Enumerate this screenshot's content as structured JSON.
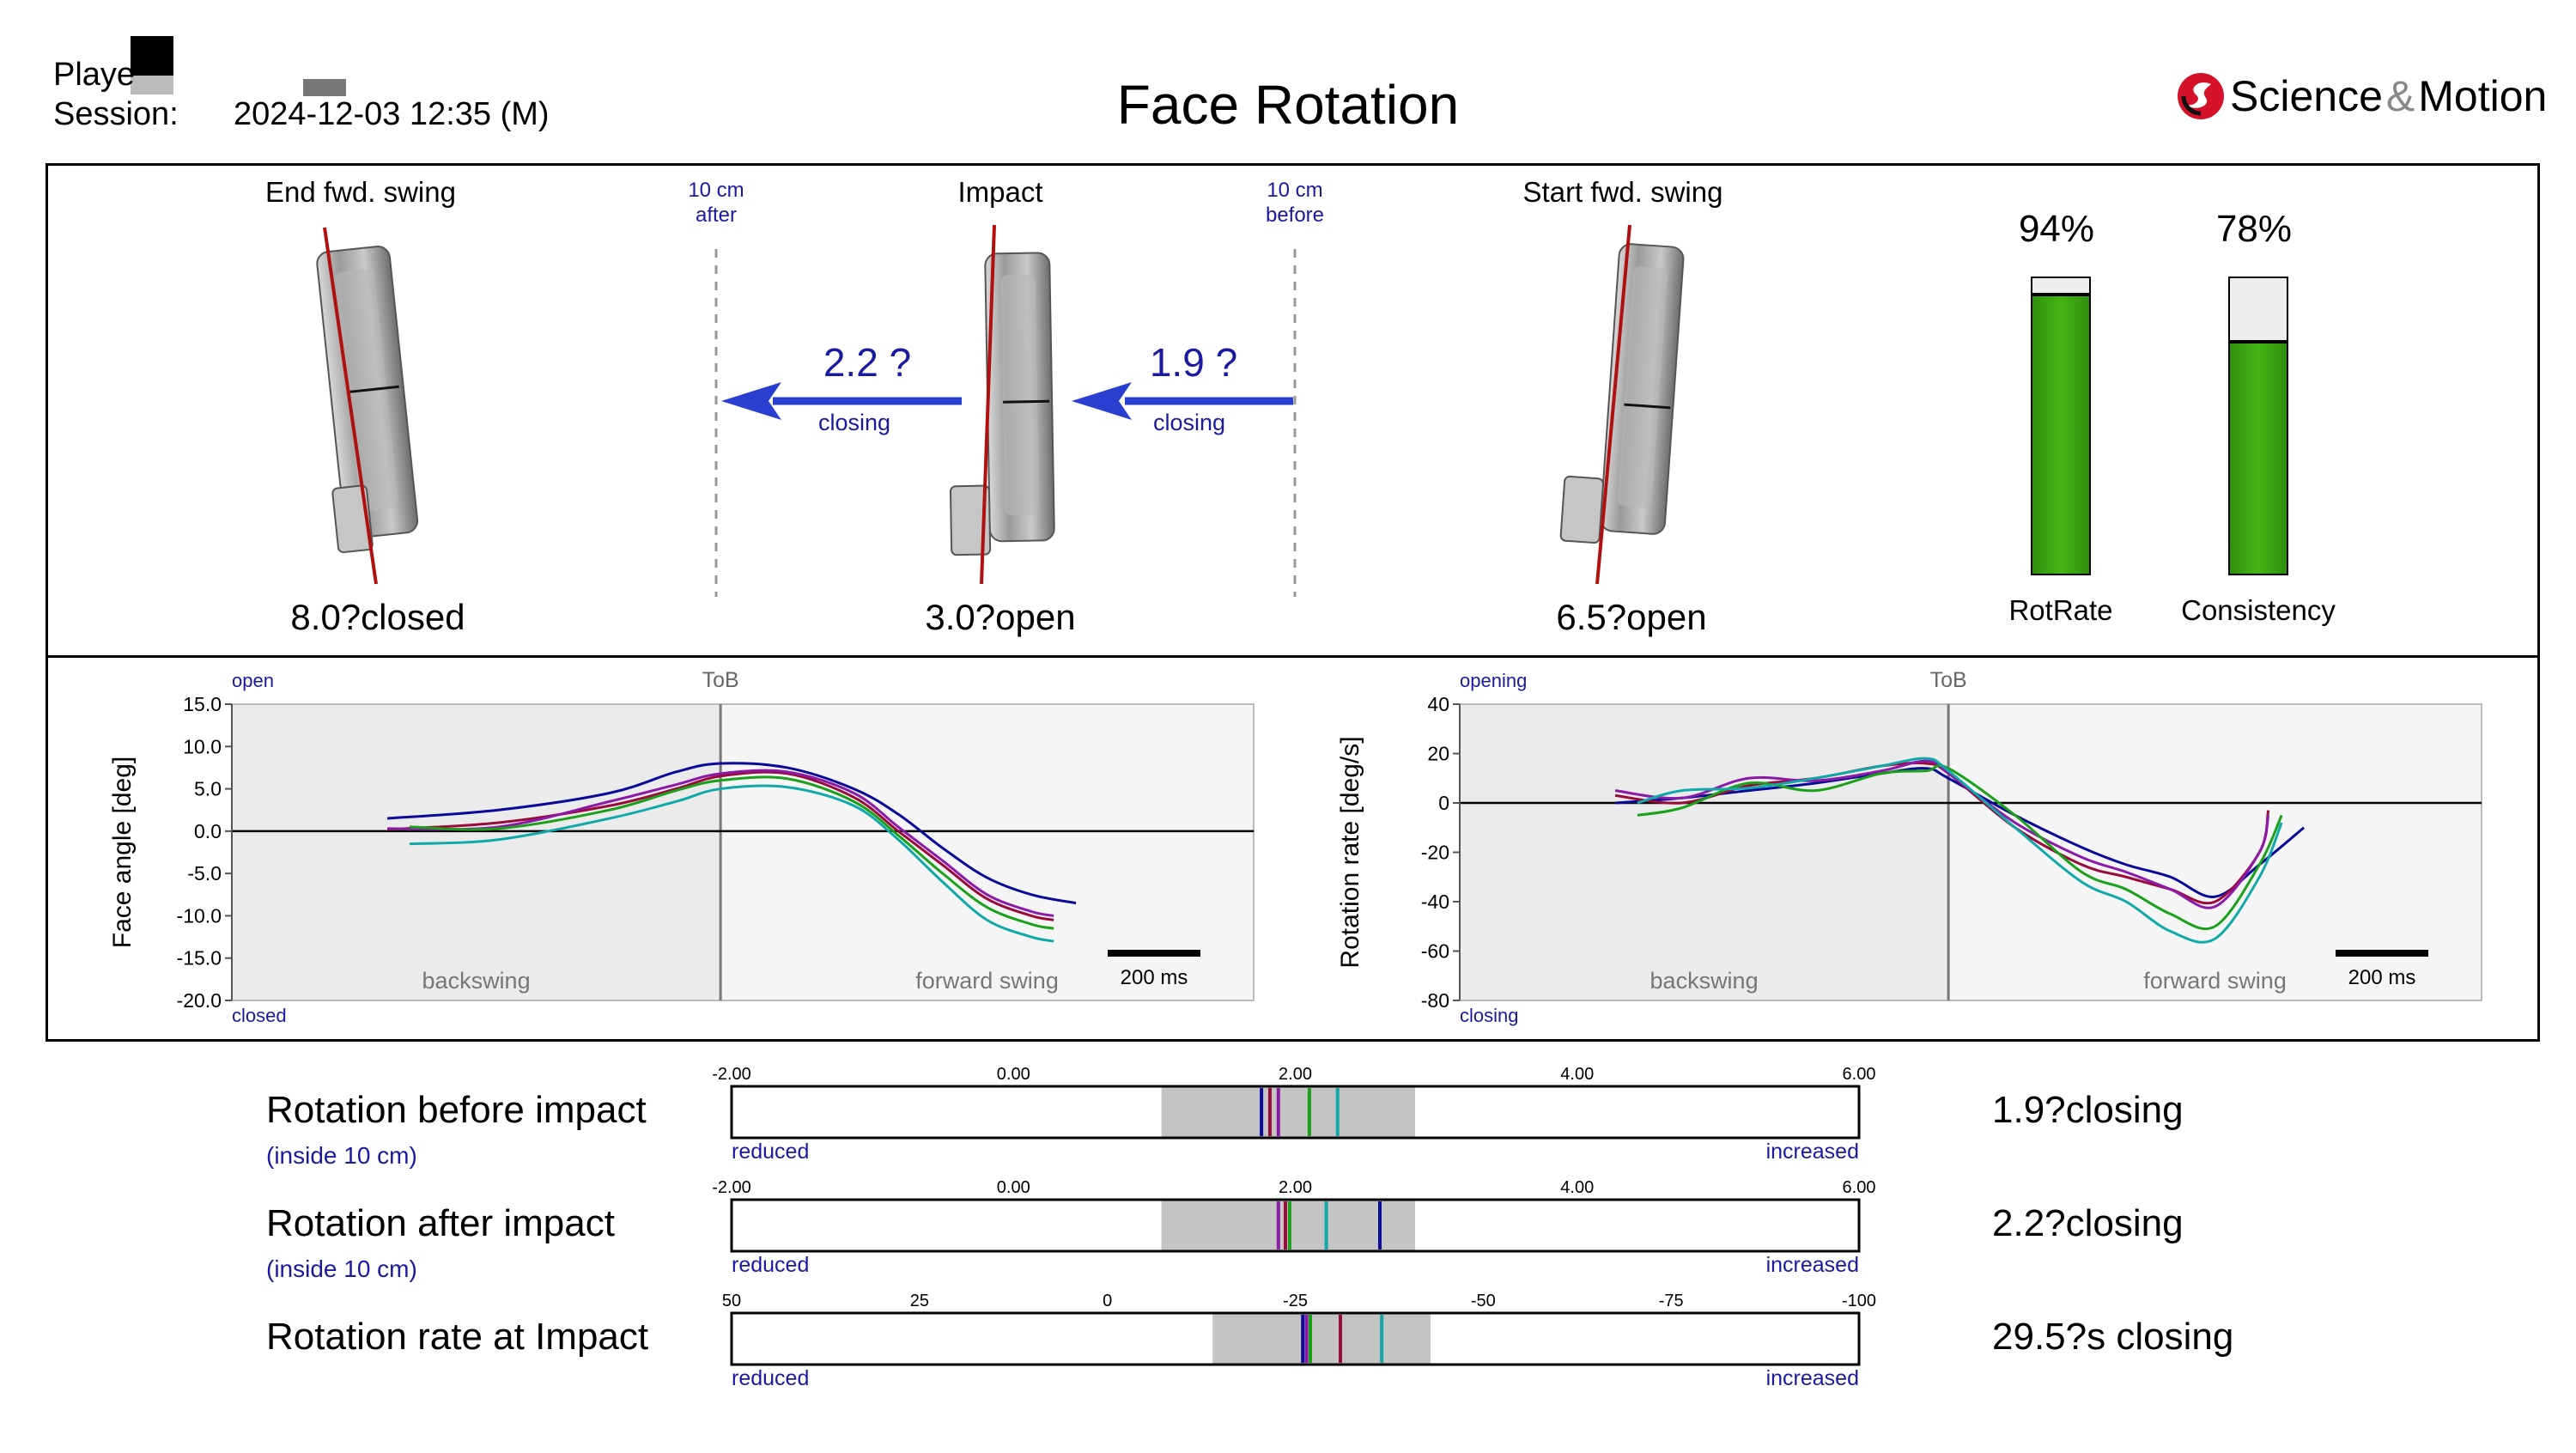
{
  "header": {
    "player_label": "Playe",
    "session_label": "Session:",
    "session_value": "2024-12-03 12:35 (M)",
    "title": "Face Rotation",
    "brand": "Science",
    "brand_amp": "&",
    "brand2": "Motion"
  },
  "clubs": {
    "end": {
      "label": "End fwd. swing",
      "value": "8.0?closed"
    },
    "after_marker": {
      "line1": "10 cm",
      "line2": "after"
    },
    "impact": {
      "label": "Impact",
      "value": "3.0?open"
    },
    "before_marker": {
      "line1": "10 cm",
      "line2": "before"
    },
    "start": {
      "label": "Start fwd. swing",
      "value": "6.5?open"
    },
    "arrow_after": {
      "value": "2.2 ?",
      "label": "closing"
    },
    "arrow_before": {
      "value": "1.9 ?",
      "label": "closing"
    }
  },
  "gauges": [
    {
      "pct_label": "94%",
      "pct": 94,
      "label": "RotRate"
    },
    {
      "pct_label": "78%",
      "pct": 78,
      "label": "Consistency"
    }
  ],
  "colors": {
    "series": [
      "#0a0a9a",
      "#9a0a3a",
      "#8b1aa8",
      "#1aa01a",
      "#10a8a8"
    ],
    "gauge_fill": "#3aa50e",
    "club_line": "#b01010",
    "arrow": "#2a3fd0"
  },
  "chart_data": [
    {
      "type": "line",
      "title": "",
      "ylabel": "Face angle [deg]",
      "xlabel": "",
      "ylim": [
        -20,
        15
      ],
      "yticks": [
        "15.0",
        "10.0",
        "5.0",
        "0.0",
        "-5.0",
        "-10.0",
        "-15.0",
        "-20.0"
      ],
      "top_label": "open",
      "bottom_label": "closed",
      "tob_label": "ToB",
      "left_region": "backswing",
      "right_region": "forward swing",
      "scale_label": "200 ms",
      "x_range": [
        -1100,
        1200
      ],
      "tob_x": 0,
      "series": [
        {
          "name": "navy",
          "x": [
            -750,
            -500,
            -250,
            -100,
            0,
            150,
            300,
            400,
            500,
            600,
            700,
            800
          ],
          "values": [
            1.5,
            2.5,
            4.5,
            7,
            8,
            7.5,
            5,
            2,
            -2,
            -5.5,
            -7.5,
            -8.5
          ]
        },
        {
          "name": "crimson",
          "x": [
            -750,
            -500,
            -250,
            -100,
            0,
            150,
            300,
            400,
            500,
            600,
            700,
            750
          ],
          "values": [
            0.2,
            1,
            3,
            5,
            6.5,
            6.8,
            4,
            0,
            -4,
            -8,
            -10,
            -10.5
          ]
        },
        {
          "name": "purple",
          "x": [
            -750,
            -500,
            -250,
            -100,
            0,
            150,
            300,
            400,
            500,
            600,
            700,
            750
          ],
          "values": [
            0.3,
            0.5,
            3.5,
            5.5,
            6.8,
            7,
            4.5,
            0.5,
            -3.5,
            -7.5,
            -9.5,
            -10
          ]
        },
        {
          "name": "green",
          "x": [
            -700,
            -500,
            -250,
            -100,
            0,
            150,
            300,
            400,
            500,
            600,
            700,
            750
          ],
          "values": [
            0.5,
            0.3,
            2.5,
            4.8,
            6,
            6.2,
            3.5,
            -0.5,
            -5,
            -9,
            -11,
            -11.5
          ]
        },
        {
          "name": "teal",
          "x": [
            -700,
            -500,
            -250,
            -100,
            0,
            150,
            300,
            400,
            500,
            600,
            700,
            750
          ],
          "values": [
            -1.5,
            -1,
            1.5,
            3.5,
            5,
            5.2,
            3,
            -1,
            -6,
            -10.5,
            -12.5,
            -13
          ]
        }
      ]
    },
    {
      "type": "line",
      "title": "",
      "ylabel": "Rotation rate [deg/s]",
      "xlabel": "",
      "ylim": [
        -80,
        40
      ],
      "yticks": [
        "40",
        "20",
        "0",
        "-20",
        "-40",
        "-60",
        "-80"
      ],
      "top_label": "opening",
      "bottom_label": "closing",
      "tob_label": "ToB",
      "left_region": "backswing",
      "right_region": "forward swing",
      "scale_label": "200 ms",
      "x_range": [
        -1100,
        1200
      ],
      "tob_x": 0,
      "series": [
        {
          "name": "navy",
          "x": [
            -750,
            -600,
            -450,
            -300,
            -150,
            -50,
            0,
            150,
            300,
            400,
            500,
            600,
            700,
            800
          ],
          "values": [
            0,
            2,
            5,
            8,
            12,
            14,
            10,
            -5,
            -18,
            -25,
            -30,
            -38,
            -25,
            -10
          ]
        },
        {
          "name": "crimson",
          "x": [
            -750,
            -600,
            -450,
            -300,
            -150,
            -50,
            0,
            150,
            300,
            400,
            500,
            600,
            700,
            720
          ],
          "values": [
            3,
            0,
            7,
            10,
            15,
            16,
            12,
            -10,
            -25,
            -30,
            -35,
            -40,
            -20,
            -3
          ]
        },
        {
          "name": "purple",
          "x": [
            -750,
            -600,
            -450,
            -300,
            -150,
            -50,
            0,
            150,
            300,
            400,
            500,
            600,
            700,
            720
          ],
          "values": [
            5,
            2,
            10,
            9,
            13,
            17,
            12,
            -8,
            -22,
            -28,
            -35,
            -42,
            -20,
            -5
          ]
        },
        {
          "name": "green",
          "x": [
            -700,
            -600,
            -450,
            -300,
            -150,
            -50,
            0,
            150,
            300,
            400,
            500,
            600,
            700,
            750
          ],
          "values": [
            -5,
            -2,
            8,
            5,
            12,
            13,
            14,
            -5,
            -28,
            -35,
            -45,
            -50,
            -25,
            -5
          ]
        },
        {
          "name": "teal",
          "x": [
            -700,
            -600,
            -450,
            -300,
            -150,
            -50,
            0,
            150,
            300,
            400,
            500,
            600,
            700,
            750
          ],
          "values": [
            0,
            5,
            6,
            10,
            15,
            18,
            13,
            -10,
            -32,
            -40,
            -52,
            -55,
            -30,
            -8
          ]
        }
      ]
    }
  ],
  "bars": [
    {
      "title": "Rotation before impact",
      "sub": "(inside 10 cm)",
      "value": "1.9?closing",
      "ticks": [
        "-2.00",
        "0.00",
        "2.00",
        "4.00",
        "6.00"
      ],
      "tick_values": [
        -2,
        0,
        2,
        4,
        6
      ],
      "range": [
        -2,
        6
      ],
      "band": [
        1.05,
        2.85
      ],
      "markers": [
        1.76,
        1.82,
        1.88,
        2.1,
        2.3
      ],
      "left_label": "reduced",
      "right_label": "increased"
    },
    {
      "title": "Rotation after impact",
      "sub": "(inside 10 cm)",
      "value": "2.2?closing",
      "ticks": [
        "-2.00",
        "0.00",
        "2.00",
        "4.00",
        "6.00"
      ],
      "tick_values": [
        -2,
        0,
        2,
        4,
        6
      ],
      "range": [
        -2,
        6
      ],
      "band": [
        1.05,
        2.85
      ],
      "markers": [
        2.6,
        1.93,
        1.88,
        1.96,
        2.22
      ],
      "left_label": "reduced",
      "right_label": "increased"
    },
    {
      "title": "Rotation rate at Impact",
      "sub": "",
      "value": "29.5?s closing",
      "ticks": [
        "50",
        "25",
        "0",
        "-25",
        "-50",
        "-75",
        "-100"
      ],
      "tick_values": [
        50,
        25,
        0,
        -25,
        -50,
        -75,
        -100
      ],
      "range": [
        50,
        -100
      ],
      "band": [
        -14,
        -43
      ],
      "markers": [
        -26,
        -31,
        -26.5,
        -27,
        -36.5
      ],
      "left_label": "reduced",
      "right_label": "increased"
    }
  ]
}
